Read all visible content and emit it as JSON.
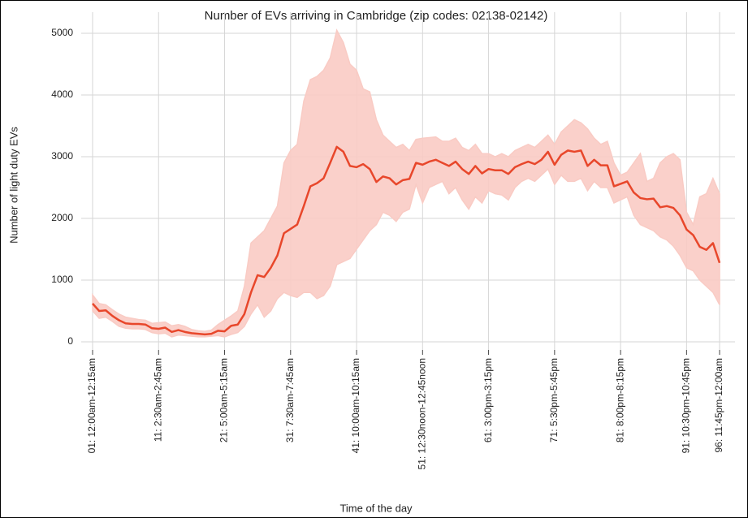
{
  "chart_data": {
    "type": "line",
    "title": "Number of EVs arriving in Cambridge (zip codes: 02138-02142)",
    "xlabel": "Time of the day",
    "ylabel": "Number of light duty EVs",
    "categories": [
      "01: 12:00am-12:15am",
      null,
      null,
      null,
      null,
      null,
      null,
      null,
      null,
      null,
      "11: 2:30am-2:45am",
      null,
      null,
      null,
      null,
      null,
      null,
      null,
      null,
      null,
      "21: 5:00am-5:15am",
      null,
      null,
      null,
      null,
      null,
      null,
      null,
      null,
      null,
      "31: 7:30am-7:45am",
      null,
      null,
      null,
      null,
      null,
      null,
      null,
      null,
      null,
      "41: 10:00am-10:15am",
      null,
      null,
      null,
      null,
      null,
      null,
      null,
      null,
      null,
      "51: 12:30noon-12:45noon",
      null,
      null,
      null,
      null,
      null,
      null,
      null,
      null,
      null,
      "61: 3:00pm-3:15pm",
      null,
      null,
      null,
      null,
      null,
      null,
      null,
      null,
      null,
      "71: 5:30pm-5:45pm",
      null,
      null,
      null,
      null,
      null,
      null,
      null,
      null,
      null,
      "81: 8:00pm-8:15pm",
      null,
      null,
      null,
      null,
      null,
      null,
      null,
      null,
      null,
      "91: 10:30pm-10:45pm",
      null,
      null,
      null,
      null,
      "96: 11:45pm-12:00am"
    ],
    "series": [
      {
        "color": "#e8472b",
        "values": [
          620,
          500,
          510,
          420,
          350,
          300,
          290,
          290,
          280,
          220,
          210,
          230,
          160,
          190,
          160,
          140,
          130,
          120,
          130,
          180,
          170,
          260,
          280,
          450,
          800,
          1080,
          1050,
          1200,
          1400,
          1760,
          1830,
          1900,
          2200,
          2520,
          2570,
          2650,
          2900,
          3160,
          3080,
          2850,
          2830,
          2880,
          2800,
          2590,
          2680,
          2650,
          2550,
          2620,
          2640,
          2900,
          2870,
          2920,
          2950,
          2900,
          2850,
          2920,
          2800,
          2720,
          2850,
          2730,
          2800,
          2780,
          2780,
          2720,
          2830,
          2880,
          2920,
          2880,
          2950,
          3080,
          2870,
          3030,
          3100,
          3080,
          3100,
          2850,
          2950,
          2860,
          2860,
          2520,
          2560,
          2600,
          2420,
          2330,
          2310,
          2320,
          2180,
          2200,
          2170,
          2050,
          1820,
          1730,
          1540,
          1490,
          1600,
          1280
        ]
      }
    ],
    "band": {
      "color": "#f9cbc4",
      "upper": [
        760,
        620,
        600,
        520,
        450,
        400,
        380,
        360,
        350,
        300,
        310,
        320,
        260,
        280,
        250,
        200,
        180,
        170,
        190,
        280,
        350,
        420,
        500,
        900,
        1600,
        1700,
        1800,
        2000,
        2200,
        2900,
        3100,
        3200,
        3900,
        4250,
        4300,
        4400,
        4600,
        5050,
        4850,
        4500,
        4400,
        4100,
        4050,
        3600,
        3350,
        3250,
        3150,
        3200,
        3100,
        3280,
        3300,
        3310,
        3320,
        3250,
        3250,
        3300,
        3150,
        3100,
        3200,
        3050,
        3050,
        3000,
        3050,
        3000,
        3100,
        3150,
        3200,
        3150,
        3250,
        3350,
        3200,
        3400,
        3500,
        3600,
        3550,
        3450,
        3300,
        3200,
        3250,
        2900,
        2700,
        2750,
        2900,
        3050,
        2600,
        2650,
        2900,
        3000,
        3050,
        2950,
        2100,
        1900,
        2350,
        2400,
        2650,
        2400
      ],
      "lower": [
        500,
        380,
        400,
        330,
        250,
        220,
        210,
        210,
        200,
        150,
        130,
        140,
        80,
        110,
        100,
        90,
        80,
        80,
        90,
        100,
        80,
        120,
        150,
        250,
        450,
        600,
        400,
        500,
        700,
        800,
        750,
        720,
        800,
        800,
        700,
        750,
        900,
        1250,
        1300,
        1350,
        1500,
        1650,
        1800,
        1900,
        2100,
        2050,
        1950,
        2100,
        2150,
        2550,
        2250,
        2500,
        2550,
        2600,
        2400,
        2500,
        2300,
        2150,
        2350,
        2250,
        2450,
        2400,
        2380,
        2300,
        2500,
        2600,
        2650,
        2600,
        2700,
        2800,
        2550,
        2700,
        2600,
        2600,
        2650,
        2450,
        2600,
        2500,
        2500,
        2250,
        2300,
        2350,
        2050,
        1900,
        1850,
        1800,
        1700,
        1650,
        1550,
        1400,
        1200,
        1150,
        1000,
        900,
        800,
        600
      ]
    },
    "ylim": [
      0,
      5000
    ],
    "yticks": [
      0,
      1000,
      2000,
      3000,
      4000,
      5000
    ],
    "grid": true
  }
}
